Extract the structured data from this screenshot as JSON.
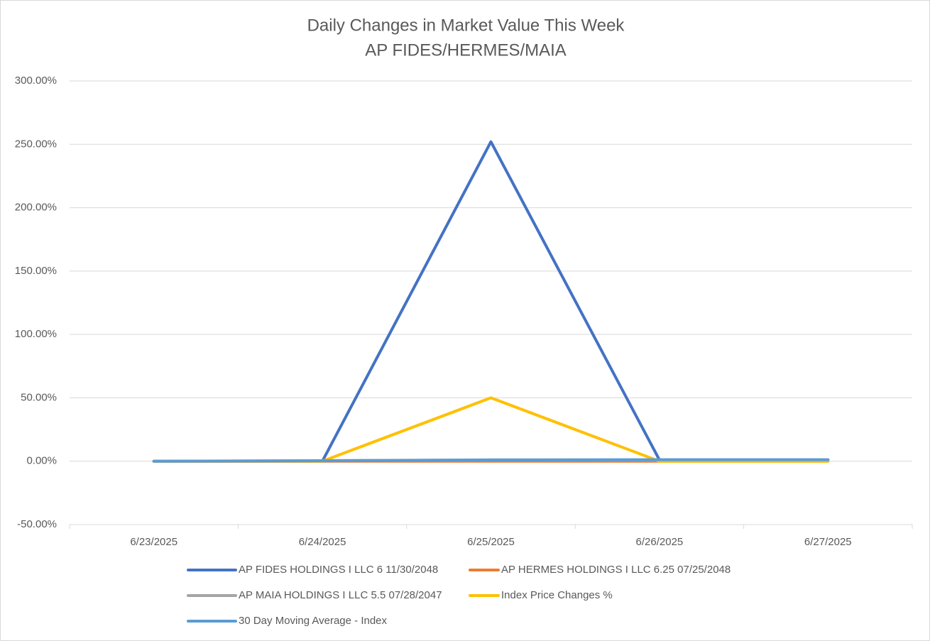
{
  "chart_data": {
    "type": "line",
    "title": "Daily Changes in Market Value This Week",
    "subtitle": "AP FIDES/HERMES/MAIA",
    "categories": [
      "6/23/2025",
      "6/24/2025",
      "6/25/2025",
      "6/26/2025",
      "6/27/2025"
    ],
    "series": [
      {
        "name": "AP FIDES HOLDINGS I LLC 6 11/30/2048",
        "color": "#4472c4",
        "values": [
          0,
          0,
          252,
          1,
          1
        ]
      },
      {
        "name": "AP HERMES HOLDINGS I LLC 6.25 07/25/2048",
        "color": "#ed7d31",
        "values": [
          0,
          0,
          0,
          0,
          0
        ]
      },
      {
        "name": "AP MAIA HOLDINGS I LLC 5.5 07/28/2047",
        "color": "#a5a5a5",
        "values": [
          0,
          0.5,
          1,
          1,
          1
        ]
      },
      {
        "name": "Index Price Changes %",
        "color": "#ffc000",
        "values": [
          0,
          0,
          50,
          0,
          0
        ]
      },
      {
        "name": "30 Day Moving Average - Index",
        "color": "#5b9bd5",
        "values": [
          0,
          0.3,
          1,
          1.2,
          1.2
        ]
      }
    ],
    "ylim": [
      -50,
      300
    ],
    "yticks": [
      {
        "value": -50,
        "label": "-50.00%"
      },
      {
        "value": 0,
        "label": "0.00%"
      },
      {
        "value": 50,
        "label": "50.00%"
      },
      {
        "value": 100,
        "label": "100.00%"
      },
      {
        "value": 150,
        "label": "150.00%"
      },
      {
        "value": 200,
        "label": "200.00%"
      },
      {
        "value": 250,
        "label": "250.00%"
      },
      {
        "value": 300,
        "label": "300.00%"
      }
    ],
    "grid": true,
    "legend": "bottom"
  }
}
